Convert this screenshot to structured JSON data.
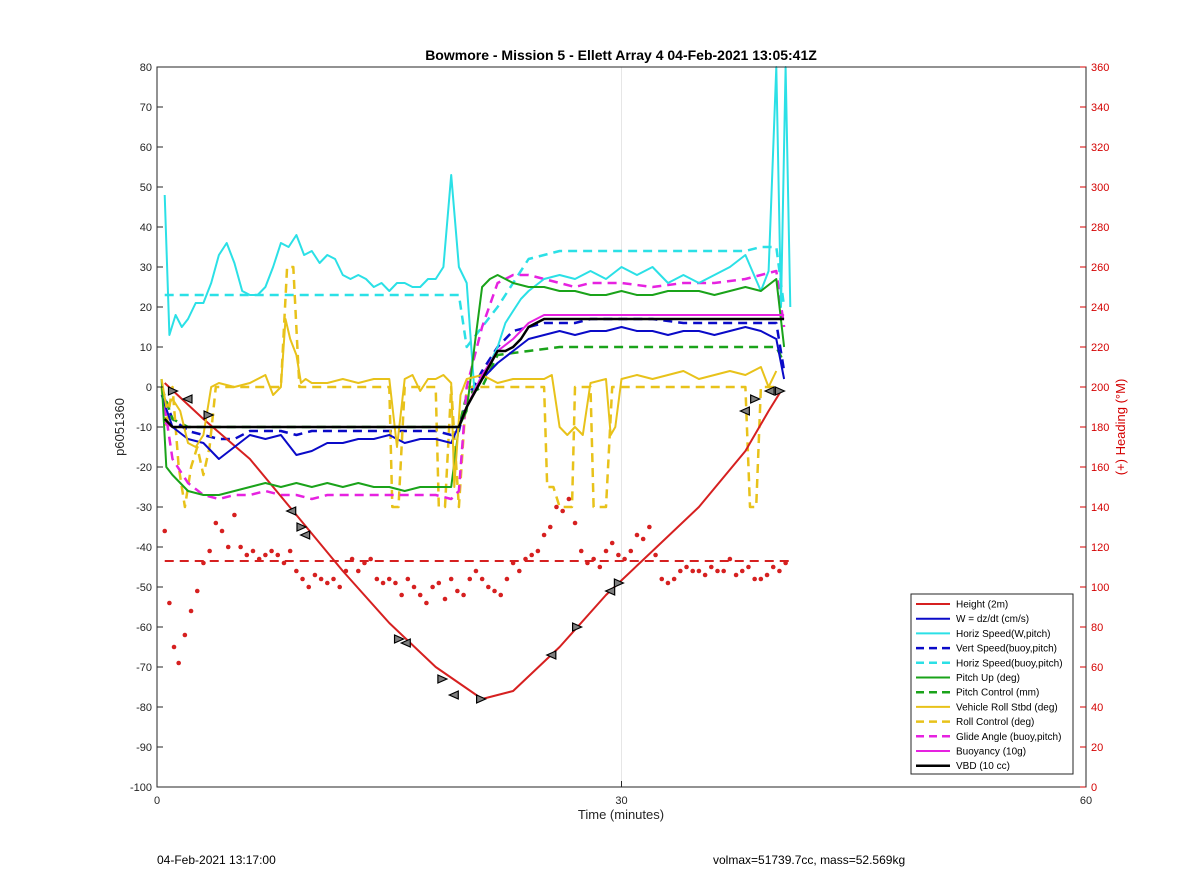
{
  "chart_data": {
    "type": "line",
    "title": "Bowmore - Mission 5 - Ellett Array 4 04-Feb-2021 13:05:41Z",
    "xlabel": "Time (minutes)",
    "ylabel": "p6051360",
    "y2label": "(+) Heading (°M)",
    "xlim": [
      0,
      60
    ],
    "ylim": [
      -100,
      80
    ],
    "y2lim": [
      0,
      360
    ],
    "xticks": [
      0,
      30,
      60
    ],
    "yticks": [
      -100,
      -90,
      -80,
      -70,
      -60,
      -50,
      -40,
      -30,
      -20,
      -10,
      0,
      10,
      20,
      30,
      40,
      50,
      60,
      70,
      80
    ],
    "y2ticks": [
      0,
      20,
      40,
      60,
      80,
      100,
      120,
      140,
      160,
      180,
      200,
      220,
      240,
      260,
      280,
      300,
      320,
      340,
      360
    ],
    "grid": "x-only",
    "legend_position": "bottom-right",
    "series": [
      {
        "name": "Height (2m)",
        "color": "#d62020",
        "style": "solid",
        "width": 2,
        "x": [
          0.5,
          3,
          6,
          9,
          12,
          15,
          18,
          21,
          23,
          26,
          29,
          32,
          35,
          38,
          39.5,
          40.3
        ],
        "y": [
          1,
          -8,
          -18,
          -32,
          -46,
          -59,
          -70,
          -78,
          -76,
          -65,
          -52,
          -41,
          -30,
          -16,
          -6,
          -1
        ]
      },
      {
        "name": "W = dz/dt (cm/s)",
        "color": "#0a0ac8",
        "style": "solid",
        "width": 2,
        "x": [
          0.3,
          1,
          2,
          3,
          4,
          5,
          6,
          7,
          8,
          9,
          10,
          11,
          12,
          13,
          14,
          15,
          16,
          17,
          18,
          19,
          20,
          21,
          22,
          23,
          24,
          25,
          26,
          27,
          28,
          29,
          30,
          31,
          32,
          33,
          34,
          35,
          36,
          37,
          38,
          39,
          40,
          40.5
        ],
        "y": [
          -2,
          -10,
          -13,
          -14,
          -18,
          -15,
          -12,
          -13,
          -12,
          -17,
          -16,
          -14,
          -14,
          -13,
          -13,
          -12,
          -14,
          -13,
          -13,
          -14,
          -5,
          2,
          6,
          9,
          12,
          13,
          14,
          13,
          14,
          14,
          15,
          14,
          14,
          13,
          14,
          14,
          13,
          14,
          15,
          14,
          12,
          2
        ]
      },
      {
        "name": "Horiz Speed(W,pitch)",
        "color": "#2be0e6",
        "style": "solid",
        "width": 2,
        "x": [
          0.5,
          0.8,
          1.2,
          1.6,
          2,
          2.5,
          3,
          3.5,
          4,
          4.5,
          5,
          5.5,
          6,
          6.5,
          7,
          7.5,
          8,
          8.5,
          9,
          9.5,
          10,
          10.5,
          11,
          11.5,
          12,
          12.5,
          13,
          13.5,
          14,
          14.5,
          15,
          15.5,
          16,
          16.5,
          17,
          17.5,
          18,
          18.5,
          19,
          19.5,
          20,
          20.5,
          21,
          21.5,
          22,
          22.5,
          23,
          23.5,
          24,
          25,
          26,
          27,
          28,
          29,
          30,
          31,
          32,
          33,
          34,
          35,
          36,
          37,
          38,
          39,
          39.5,
          40,
          40.3,
          40.6,
          40.9
        ],
        "y": [
          48,
          13,
          18,
          15,
          17,
          21,
          21,
          26,
          33,
          36,
          31,
          24,
          23,
          23,
          25,
          30,
          36,
          35,
          38,
          33,
          34,
          31,
          33,
          32,
          28,
          27,
          28,
          27,
          25,
          26,
          24,
          26,
          26,
          25,
          25,
          27,
          27,
          30,
          53,
          30,
          26,
          -1,
          3,
          6,
          10,
          16,
          19,
          22,
          24,
          27,
          28,
          27,
          29,
          27,
          30,
          28,
          30,
          26,
          28,
          26,
          28,
          30,
          33,
          24,
          29,
          80,
          20,
          80,
          20
        ]
      },
      {
        "name": "Vert Speed(buoy,pitch)",
        "color": "#0a0ac8",
        "style": "dash",
        "width": 2.5,
        "x": [
          0.5,
          1,
          2,
          3,
          4,
          5,
          6,
          7,
          8,
          9,
          10,
          12,
          14,
          16,
          18,
          19,
          19.5,
          20,
          21,
          22,
          23,
          24,
          25,
          26,
          27,
          28,
          30,
          32,
          34,
          36,
          38,
          40,
          40.5
        ],
        "y": [
          -3,
          -8,
          -11,
          -12,
          -13,
          -13,
          -11,
          -11,
          -11,
          -12,
          -11,
          -11,
          -11,
          -11,
          -11,
          -12,
          -11,
          -3,
          4,
          10,
          14,
          15,
          16,
          16,
          16,
          17,
          17,
          17,
          16,
          16,
          16,
          16,
          4
        ]
      },
      {
        "name": "Horiz Speed(buoy,pitch)",
        "color": "#2be0e6",
        "style": "dash",
        "width": 2.5,
        "x": [
          0.5,
          1,
          2,
          3,
          4,
          6,
          8,
          10,
          12,
          14,
          16,
          18,
          19.5,
          20,
          21,
          22,
          23,
          24,
          25,
          26,
          28,
          30,
          32,
          34,
          36,
          38,
          39,
          40,
          40.5
        ],
        "y": [
          23,
          23,
          23,
          23,
          23,
          23,
          23,
          23,
          23,
          23,
          23,
          23,
          23,
          10,
          15,
          20,
          26,
          32,
          33,
          34,
          34,
          34,
          34,
          34,
          34,
          34,
          35,
          35,
          20
        ]
      },
      {
        "name": "Pitch Up (deg)",
        "color": "#1aa31a",
        "style": "solid",
        "width": 2,
        "x": [
          0.3,
          0.6,
          1,
          2,
          3,
          4,
          5,
          6,
          7,
          8,
          9,
          10,
          11,
          12,
          13,
          14,
          15,
          16,
          17,
          18,
          19,
          19.5,
          20,
          20.5,
          21,
          21.5,
          22,
          23,
          24,
          25,
          26,
          27,
          28,
          29,
          30,
          31,
          32,
          33,
          34,
          35,
          36,
          37,
          38,
          39,
          40,
          40.5
        ],
        "y": [
          2,
          -20,
          -22,
          -26,
          -27,
          -27,
          -26,
          -25,
          -24,
          -25,
          -24,
          -25,
          -24,
          -25,
          -24,
          -25,
          -25,
          -26,
          -25,
          -25,
          -25,
          -10,
          -6,
          10,
          25,
          27,
          28,
          26,
          25,
          25,
          24,
          24,
          23,
          23,
          24,
          23,
          23,
          24,
          24,
          24,
          23,
          24,
          25,
          24,
          27,
          10
        ]
      },
      {
        "name": "Pitch Control (mm)",
        "color": "#1aa31a",
        "style": "dash",
        "width": 2.5,
        "x": [
          0.3,
          1,
          2,
          3,
          6,
          9,
          12,
          15,
          18,
          19.5,
          20,
          21,
          22,
          24,
          26,
          28,
          30,
          32,
          34,
          36,
          38,
          40,
          40.5
        ],
        "y": [
          0,
          -8,
          -10,
          -10,
          -10,
          -10,
          -10,
          -10,
          -10,
          -10,
          -2,
          0,
          8,
          9,
          10,
          10,
          10,
          10,
          10,
          10,
          10,
          10,
          6
        ]
      },
      {
        "name": "Vehicle Roll Stbd (deg)",
        "color": "#e8c21a",
        "style": "solid",
        "width": 2,
        "x": [
          0.3,
          0.6,
          1,
          1.5,
          2,
          2.5,
          3,
          3.5,
          4,
          5,
          6,
          7,
          7.5,
          8,
          8.3,
          8.6,
          9,
          9.3,
          9.6,
          10,
          11,
          12,
          13,
          14,
          15,
          15.5,
          16,
          16.5,
          17,
          17.5,
          18,
          18.5,
          19,
          19.2,
          19.6,
          20,
          21,
          22,
          23,
          24,
          25,
          25.5,
          26,
          26.5,
          27,
          27.5,
          28,
          29,
          29.3,
          29.6,
          30,
          31,
          32,
          33,
          34,
          35,
          36,
          37,
          38,
          39,
          39.5,
          40
        ],
        "y": [
          2,
          -5,
          -3,
          -6,
          -14,
          -15,
          -12,
          0,
          1,
          0,
          1,
          3,
          -2,
          0,
          17,
          12,
          8,
          1,
          2,
          1,
          1,
          2,
          1,
          2,
          2,
          -15,
          2,
          3,
          -1,
          2,
          2,
          3,
          1,
          -25,
          -2,
          2,
          3,
          1,
          2,
          2,
          2,
          3,
          -10,
          -12,
          -10,
          -12,
          1,
          2,
          -12,
          -10,
          2,
          3,
          2,
          3,
          4,
          2,
          3,
          4,
          3,
          5,
          0,
          4
        ]
      },
      {
        "name": "Roll Control (deg)",
        "color": "#e8c21a",
        "style": "dash",
        "width": 2.5,
        "x": [
          0.3,
          0.6,
          1,
          1.4,
          1.8,
          2.2,
          2.6,
          3,
          3.4,
          3.8,
          4.2,
          6,
          8,
          8.4,
          8.8,
          9.2,
          9.6,
          10,
          12,
          14,
          15,
          15.2,
          15.6,
          16,
          18,
          18.2,
          18.6,
          19,
          19.5,
          20,
          24,
          25,
          25.2,
          25.6,
          26,
          26.4,
          26.8,
          27,
          28,
          28.2,
          29,
          29.4,
          30,
          32,
          34,
          36,
          38,
          38.3,
          38.7,
          39,
          39.4,
          40
        ],
        "y": [
          0,
          -10,
          0,
          -20,
          -30,
          -20,
          -15,
          -22,
          -15,
          0,
          0,
          0,
          0,
          30,
          30,
          0,
          0,
          0,
          0,
          0,
          0,
          -30,
          -30,
          0,
          0,
          -30,
          -30,
          0,
          -30,
          0,
          0,
          0,
          -25,
          -25,
          -30,
          -30,
          -30,
          0,
          0,
          -30,
          -30,
          0,
          0,
          0,
          0,
          0,
          0,
          -30,
          -30,
          0,
          0,
          0
        ]
      },
      {
        "name": "Glide Angle (buoy,pitch)",
        "color": "#e622e0",
        "style": "dash",
        "width": 2.5,
        "x": [
          0.5,
          1,
          2,
          3,
          4,
          5,
          6,
          7,
          8,
          9,
          10,
          11,
          12,
          13,
          14,
          15,
          16,
          17,
          18,
          19,
          19.5,
          20,
          21,
          22,
          23,
          24,
          25,
          26,
          27,
          28,
          30,
          32,
          34,
          36,
          38,
          39,
          40,
          40.5
        ],
        "y": [
          -5,
          -18,
          -24,
          -27,
          -28,
          -27,
          -27,
          -26,
          -27,
          -27,
          -28,
          -27,
          -27,
          -27,
          -27,
          -27,
          -27,
          -27,
          -27,
          -28,
          -26,
          0,
          15,
          26,
          28,
          28,
          27,
          26,
          25,
          26,
          26,
          25,
          26,
          26,
          27,
          28,
          29,
          15
        ]
      },
      {
        "name": "Buoyancy (10g)",
        "color": "#e622e0",
        "style": "solid",
        "width": 2,
        "x": [
          0.5,
          1,
          2,
          4,
          6,
          8,
          10,
          12,
          14,
          16,
          18,
          19,
          19.5,
          20,
          21,
          22,
          23,
          24,
          25,
          26,
          28,
          30,
          32,
          34,
          36,
          38,
          40,
          40.5
        ],
        "y": [
          -9,
          -10,
          -10,
          -10,
          -10,
          -10,
          -10,
          -10,
          -10,
          -10,
          -10,
          -10,
          -10,
          -5,
          3,
          9,
          12,
          16,
          18,
          18,
          18,
          18,
          18,
          18,
          18,
          18,
          18,
          18
        ]
      },
      {
        "name": "VBD (10 cc)",
        "color": "#000000",
        "style": "solid",
        "width": 2.5,
        "x": [
          0.5,
          1,
          2,
          4,
          6,
          8,
          10,
          12,
          14,
          16,
          18,
          19,
          19.5,
          20,
          21,
          22,
          22.5,
          23,
          23.5,
          24,
          24.5,
          25,
          26,
          28,
          30,
          32,
          34,
          36,
          38,
          40,
          40.5
        ],
        "y": [
          -8,
          -10,
          -10,
          -10,
          -10,
          -10,
          -10,
          -10,
          -10,
          -10,
          -10,
          -10,
          -10,
          -5,
          2,
          9,
          9,
          10,
          12,
          15,
          16,
          17,
          17,
          17,
          17,
          17,
          17,
          17,
          17,
          17,
          17
        ]
      }
    ],
    "heading_series": {
      "axis": "right",
      "color": "#d62020",
      "dots_x": [
        0.5,
        0.8,
        1.1,
        1.4,
        1.8,
        2.2,
        2.6,
        3.0,
        3.4,
        3.8,
        4.2,
        4.6,
        5.0,
        5.4,
        5.8,
        6.2,
        6.6,
        7.0,
        7.4,
        7.8,
        8.2,
        8.6,
        9.0,
        9.4,
        9.8,
        10.2,
        10.6,
        11.0,
        11.4,
        11.8,
        12.2,
        12.6,
        13.0,
        13.4,
        13.8,
        14.2,
        14.6,
        15.0,
        15.4,
        15.8,
        16.2,
        16.6,
        17.0,
        17.4,
        17.8,
        18.2,
        18.6,
        19.0,
        19.4,
        19.8,
        20.2,
        20.6,
        21.0,
        21.4,
        21.8,
        22.2,
        22.6,
        23.0,
        23.4,
        23.8,
        24.2,
        24.6,
        25.0,
        25.4,
        25.8,
        26.2,
        26.6,
        27.0,
        27.4,
        27.8,
        28.2,
        28.6,
        29.0,
        29.4,
        29.8,
        30.2,
        30.6,
        31.0,
        31.4,
        31.8,
        32.2,
        32.6,
        33.0,
        33.4,
        33.8,
        34.2,
        34.6,
        35.0,
        35.4,
        35.8,
        36.2,
        36.6,
        37.0,
        37.4,
        37.8,
        38.2,
        38.6,
        39.0,
        39.4,
        39.8,
        40.2,
        40.6
      ],
      "dots_y": [
        128,
        92,
        70,
        62,
        76,
        88,
        98,
        112,
        118,
        132,
        128,
        120,
        136,
        120,
        116,
        118,
        114,
        116,
        118,
        116,
        112,
        118,
        108,
        104,
        100,
        106,
        104,
        102,
        104,
        100,
        108,
        114,
        108,
        112,
        114,
        104,
        102,
        104,
        102,
        96,
        104,
        100,
        96,
        92,
        100,
        102,
        94,
        104,
        98,
        96,
        104,
        108,
        104,
        100,
        98,
        96,
        104,
        112,
        108,
        114,
        116,
        118,
        126,
        130,
        140,
        138,
        144,
        132,
        118,
        112,
        114,
        110,
        118,
        122,
        116,
        114,
        118,
        126,
        124,
        130,
        116,
        104,
        102,
        104,
        108,
        110,
        108,
        108,
        106,
        110,
        108,
        108,
        114,
        106,
        108,
        110,
        104,
        104,
        106,
        110,
        108,
        112
      ],
      "mean_heading": 113
    },
    "markers_x": [
      1,
      2,
      3.3,
      8.7,
      9.3,
      9.6,
      15.6,
      16.1,
      18.4,
      19.2,
      20.9,
      25.5,
      27.1,
      29.3,
      29.8,
      38,
      38.6,
      39.6,
      40.2
    ],
    "markers_y": [
      -1,
      -3,
      -7,
      -31,
      -35,
      -37,
      -63,
      -64,
      -73,
      -77,
      -78,
      -67,
      -60,
      -51,
      -49,
      -6,
      -3,
      -1,
      -1
    ]
  },
  "footer": {
    "left": "04-Feb-2021 13:17:00",
    "right": "volmax=51739.7cc, mass=52.569kg"
  }
}
